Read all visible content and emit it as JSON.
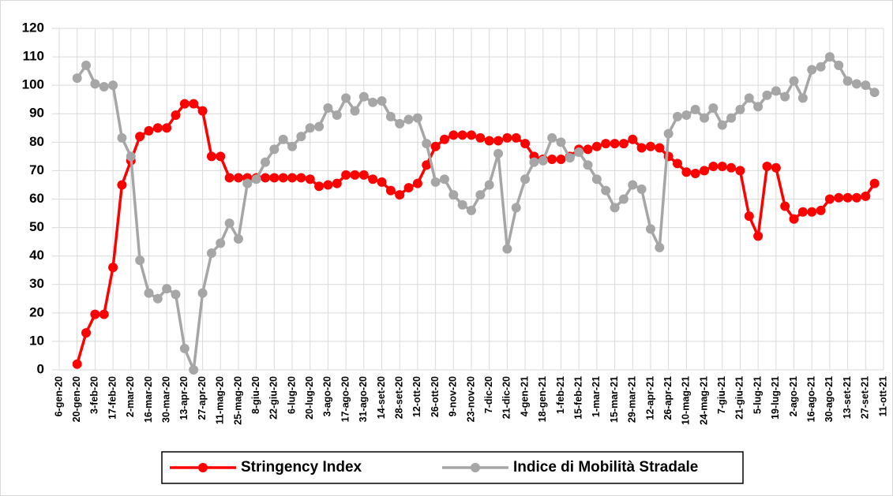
{
  "chart_data": {
    "type": "line",
    "categories": [
      "6-gen-20",
      null,
      "20-gen-20",
      null,
      "3-feb-20",
      null,
      "17-feb-20",
      null,
      "2-mar-20",
      null,
      "16-mar-20",
      null,
      "30-mar-20",
      null,
      "13-apr-20",
      null,
      "27-apr-20",
      null,
      "11-mag-20",
      null,
      "25-mag-20",
      null,
      "8-giu-20",
      null,
      "22-giu-20",
      null,
      "6-lug-20",
      null,
      "20-lug-20",
      null,
      "3-ago-20",
      null,
      "17-ago-20",
      null,
      "31-ago-20",
      null,
      "14-set-20",
      null,
      "28-set-20",
      null,
      "12-ott-20",
      null,
      "26-ott-20",
      null,
      "9-nov-20",
      null,
      "23-nov-20",
      null,
      "7-dic-20",
      null,
      "21-dic-20",
      null,
      "4-gen-21",
      null,
      "18-gen-21",
      null,
      "1-feb-21",
      null,
      "15-feb-21",
      null,
      "1-mar-21",
      null,
      "15-mar-21",
      null,
      "29-mar-21",
      null,
      "12-apr-21",
      null,
      "26-apr-21",
      null,
      "10-mag-21",
      null,
      "24-mag-21",
      null,
      "7-giu-21",
      null,
      "21-giu-21",
      null,
      "5-lug-21",
      null,
      "19-lug-21",
      null,
      "2-ago-21",
      null,
      "16-ago-21",
      null,
      "30-ago-21",
      null,
      "13-set-21",
      null,
      "27-set-21",
      null,
      "11-ott-21"
    ],
    "series": [
      {
        "name": "Stringency Index",
        "color": "#ff0000",
        "values": [
          null,
          null,
          2,
          13,
          19.5,
          19.5,
          36,
          65,
          73.5,
          82,
          84,
          85,
          85,
          89.5,
          93.5,
          93.5,
          91,
          75,
          75,
          67.5,
          67.5,
          67.5,
          67.5,
          67.5,
          67.5,
          67.5,
          67.5,
          67.5,
          67,
          64.5,
          65,
          65.5,
          68.5,
          68.5,
          68.5,
          67,
          66,
          63,
          61.5,
          64,
          65.5,
          72,
          78.5,
          81,
          82.5,
          82.5,
          82.5,
          81.5,
          80.5,
          80.5,
          81.5,
          81.5,
          79.5,
          75,
          74,
          74,
          74,
          75,
          77.5,
          77.5,
          78.5,
          79.5,
          79.5,
          79.5,
          81,
          78,
          78.5,
          78,
          75,
          72.5,
          69.5,
          69,
          70,
          71.5,
          71.5,
          71,
          70,
          54,
          47,
          71.5,
          71,
          57.5,
          53,
          55.5,
          55.5,
          56,
          60,
          60.5,
          60.5,
          60.5,
          61,
          65.5,
          null
        ]
      },
      {
        "name": "Indice di Mobilità Stradale",
        "color": "#a6a6a6",
        "values": [
          null,
          null,
          102.5,
          107,
          100.5,
          99.5,
          100,
          81.5,
          75,
          38.5,
          27,
          25,
          28.5,
          26.5,
          7.5,
          0,
          27,
          41,
          44.5,
          51.5,
          46,
          65.5,
          67,
          73,
          77.5,
          81,
          78.5,
          82,
          85,
          85.5,
          92,
          89.5,
          95.5,
          91,
          96,
          94,
          94.5,
          89,
          86.5,
          88,
          88.5,
          79.5,
          66,
          67,
          61.5,
          58,
          56,
          61.5,
          65,
          76,
          42.5,
          57,
          67,
          73,
          73.5,
          81.5,
          80,
          74.5,
          76.5,
          72,
          67,
          63,
          57,
          60,
          65,
          63.5,
          49.5,
          43,
          83,
          89,
          89.5,
          91.5,
          88.5,
          92,
          86,
          88.5,
          91.5,
          95.5,
          92.5,
          96.5,
          98,
          96,
          101.5,
          95.5,
          105.5,
          106.5,
          110,
          107,
          101.5,
          100.5,
          100,
          97.5,
          null
        ]
      }
    ],
    "ylim": [
      0,
      120
    ],
    "yticks": [
      0,
      10,
      20,
      30,
      40,
      50,
      60,
      70,
      80,
      90,
      100,
      110,
      120
    ],
    "grid": true,
    "legend": "bottom"
  }
}
